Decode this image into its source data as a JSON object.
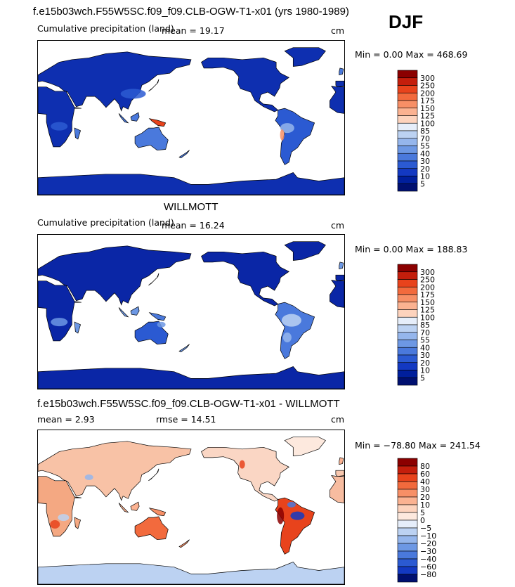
{
  "title": "f.e15b03wch.F55W5SC.f09_f09.CLB-OGW-T1-x01 (yrs 1980-1989)",
  "season": "DJF",
  "panels": [
    {
      "id": "model",
      "heading": "",
      "subtitle_left": "Cumulative precipitation  (land)",
      "stat_text": "mean =  19.17",
      "stat2_text": "",
      "units": "cm",
      "minmax_text": "Min =   0.00 Max = 468.69"
    },
    {
      "id": "obs",
      "heading": "WILLMOTT",
      "subtitle_left": "Cumulative precipitation  (land)",
      "stat_text": "mean =  16.24",
      "stat2_text": "",
      "units": "cm",
      "minmax_text": "Min =   0.00 Max = 188.83"
    },
    {
      "id": "diff",
      "heading": "f.e15b03wch.F55W5SC.f09_f09.CLB-OGW-T1-x01 - WILLMOTT",
      "subtitle_left": "mean =   2.93",
      "stat_text": "",
      "stat2_text": "rmse =  14.51",
      "units": "cm",
      "minmax_text": "Min = −78.80 Max = 241.54"
    }
  ],
  "chart_data": [
    {
      "type": "heatmap",
      "title": "Cumulative precipitation (land) - model",
      "units": "cm",
      "mean": 19.17,
      "min": 0.0,
      "max": 468.69,
      "colorbar": {
        "levels": [
          "300",
          "250",
          "200",
          "175",
          "150",
          "125",
          "100",
          "85",
          "70",
          "55",
          "40",
          "30",
          "20",
          "10",
          "5"
        ],
        "colors": [
          "#8b0000",
          "#c41e0c",
          "#e8431c",
          "#f26a3d",
          "#f78f66",
          "#fbb291",
          "#fdd3bd",
          "#e6eefa",
          "#bcd2f2",
          "#95b6ec",
          "#6d98e4",
          "#4a79dc",
          "#2b5ad2",
          "#1339c2",
          "#001f9c",
          "#001070"
        ]
      }
    },
    {
      "type": "heatmap",
      "title": "Cumulative precipitation (land) - WILLMOTT",
      "units": "cm",
      "mean": 16.24,
      "min": 0.0,
      "max": 188.83,
      "colorbar": {
        "levels": [
          "300",
          "250",
          "200",
          "175",
          "150",
          "125",
          "100",
          "85",
          "70",
          "55",
          "40",
          "30",
          "20",
          "10",
          "5"
        ],
        "colors": [
          "#8b0000",
          "#c41e0c",
          "#e8431c",
          "#f26a3d",
          "#f78f66",
          "#fbb291",
          "#fdd3bd",
          "#e6eefa",
          "#bcd2f2",
          "#95b6ec",
          "#6d98e4",
          "#4a79dc",
          "#2b5ad2",
          "#1339c2",
          "#001f9c",
          "#001070"
        ]
      }
    },
    {
      "type": "heatmap",
      "title": "f.e15b03wch.F55W5SC.f09_f09.CLB-OGW-T1-x01 - WILLMOTT",
      "units": "cm",
      "mean": 2.93,
      "rmse": 14.51,
      "min": -78.8,
      "max": 241.54,
      "colorbar": {
        "levels": [
          "80",
          "60",
          "40",
          "30",
          "20",
          "10",
          "5",
          "0",
          "−5",
          "−10",
          "−20",
          "−30",
          "−40",
          "−60",
          "−80"
        ],
        "colors": [
          "#8b0000",
          "#c41e0c",
          "#e8431c",
          "#f26a3d",
          "#f78f66",
          "#fbb291",
          "#fdd3bd",
          "#fde9de",
          "#e6eefa",
          "#bcd2f2",
          "#95b6ec",
          "#6d98e4",
          "#4a79dc",
          "#2b5ad2",
          "#1339c2",
          "#001070"
        ]
      }
    }
  ]
}
